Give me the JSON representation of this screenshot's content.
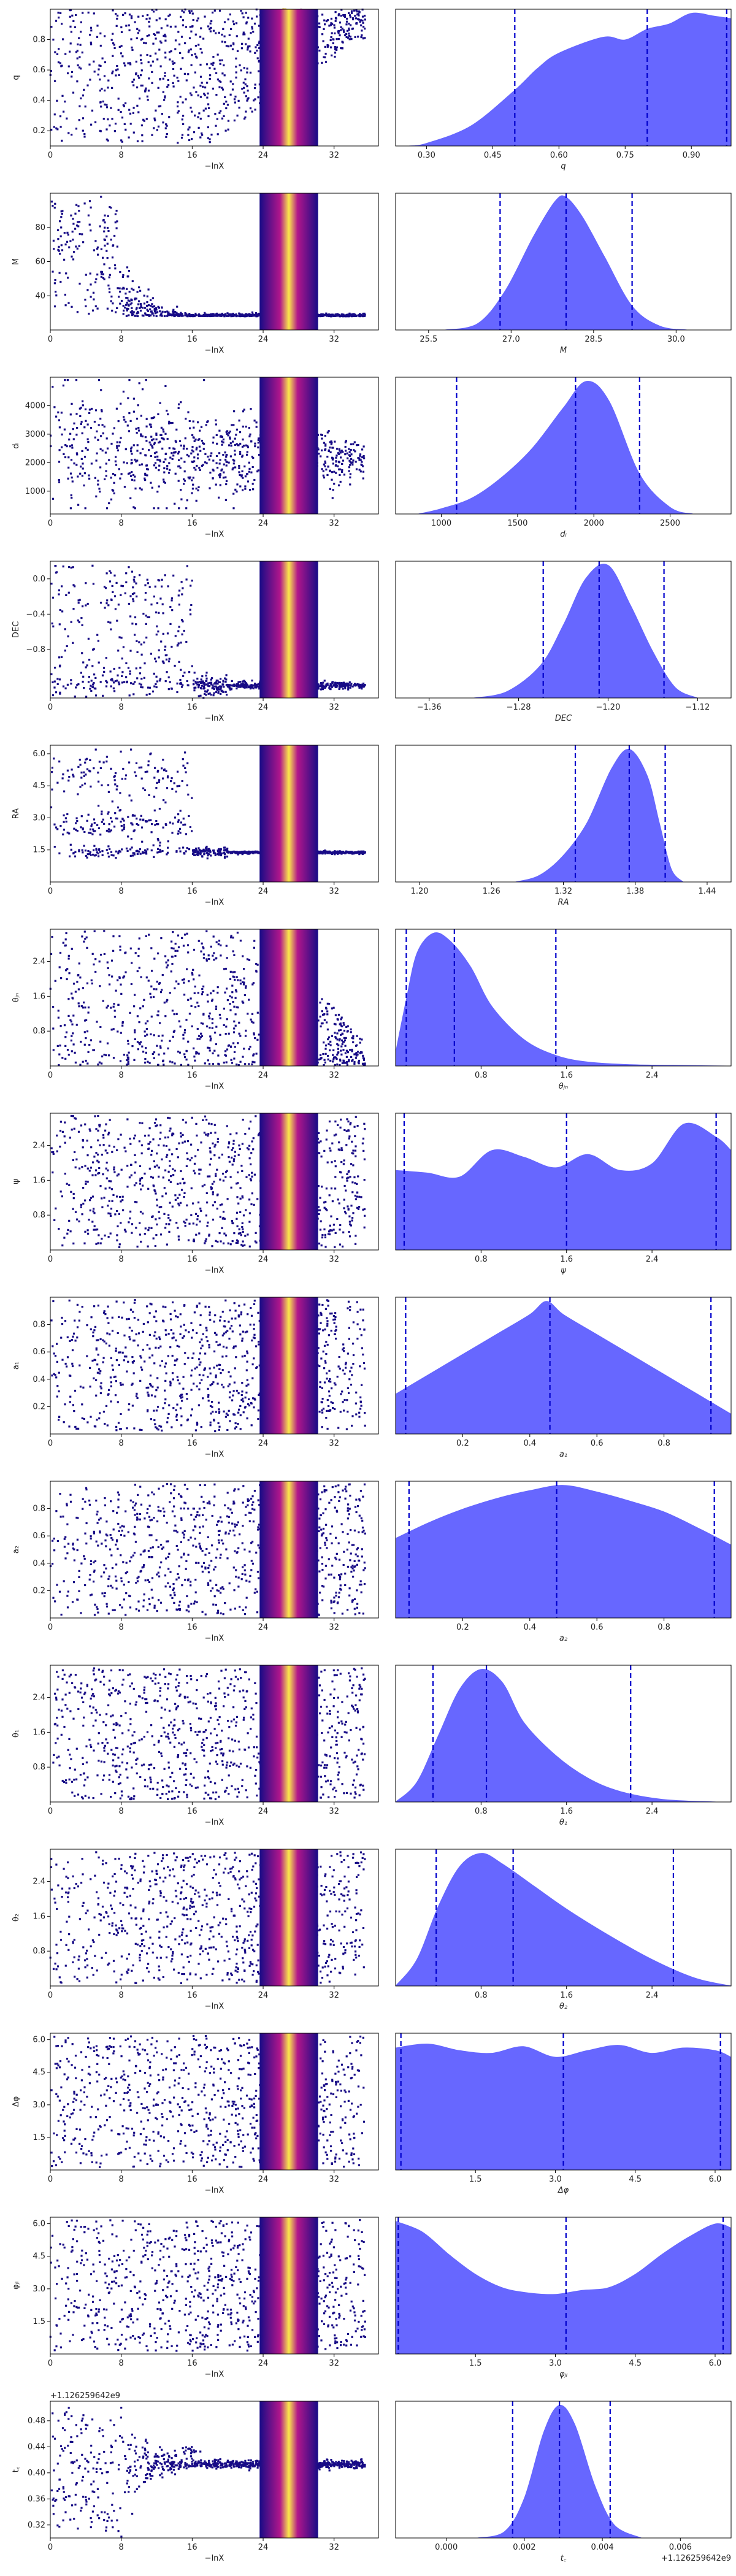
{
  "chart_data": {
    "type": "scatter",
    "colors": {
      "posterior_fill": "#6464ff",
      "quantile_line": "#0000cc",
      "scatter_low": "#170b86",
      "scatter_mid": "#b1168b",
      "scatter_high": "#fbe94a"
    },
    "quantile_style": "dashed",
    "panels": [
      {
        "param": "q",
        "trace": {
          "ylabel": "q",
          "xlabel": "−lnX",
          "xticks": [
            0,
            8,
            16,
            24,
            32
          ],
          "xlim": [
            0,
            37
          ],
          "yticks": [
            "0.2",
            "0.4",
            "0.6",
            "0.8"
          ],
          "ylim": [
            0.1,
            1.0
          ],
          "offset_label": ""
        },
        "posterior": {
          "xlabel": "q",
          "xticks": [
            "0.30",
            "0.45",
            "0.60",
            "0.75",
            "0.90"
          ],
          "xlim": [
            0.23,
            0.99
          ],
          "quantiles": [
            0.5,
            0.8,
            0.98
          ],
          "density_x": [
            0.26,
            0.3,
            0.4,
            0.5,
            0.55,
            0.6,
            0.7,
            0.75,
            0.8,
            0.85,
            0.9,
            0.95,
            0.99
          ],
          "density_y": [
            0.0,
            0.02,
            0.15,
            0.42,
            0.58,
            0.7,
            0.82,
            0.8,
            0.88,
            0.92,
            1.0,
            0.98,
            0.96
          ]
        }
      },
      {
        "param": "M",
        "trace": {
          "ylabel": "M",
          "xlabel": "−lnX",
          "xticks": [
            0,
            8,
            16,
            24,
            32
          ],
          "xlim": [
            0,
            37
          ],
          "yticks": [
            "40",
            "60",
            "80"
          ],
          "ylim": [
            20,
            100
          ],
          "offset_label": ""
        },
        "posterior": {
          "xlabel": "M",
          "xticks": [
            "25.5",
            "27.0",
            "28.5",
            "30.0"
          ],
          "xlim": [
            24.9,
            31.0
          ],
          "quantiles": [
            26.8,
            28.0,
            29.2
          ],
          "density_x": [
            25.8,
            26.4,
            26.9,
            27.4,
            27.8,
            28.0,
            28.3,
            28.7,
            29.2,
            29.7,
            30.2
          ],
          "density_y": [
            0.0,
            0.05,
            0.3,
            0.7,
            0.97,
            1.0,
            0.85,
            0.55,
            0.18,
            0.03,
            0.0
          ]
        }
      },
      {
        "param": "d_l",
        "trace": {
          "ylabel": "dₗ",
          "xlabel": "−lnX",
          "xticks": [
            0,
            8,
            16,
            24,
            32
          ],
          "xlim": [
            0,
            37
          ],
          "yticks": [
            "1000",
            "2000",
            "3000",
            "4000"
          ],
          "ylim": [
            200,
            5000
          ],
          "offset_label": ""
        },
        "posterior": {
          "xlabel": "dₗ",
          "xticks": [
            "1000",
            "1500",
            "2000",
            "2500"
          ],
          "xlim": [
            700,
            2900
          ],
          "quantiles": [
            1100,
            1880,
            2300
          ],
          "density_x": [
            850,
            1000,
            1200,
            1400,
            1600,
            1800,
            1950,
            2100,
            2300,
            2500,
            2650
          ],
          "density_y": [
            0.0,
            0.04,
            0.12,
            0.28,
            0.5,
            0.8,
            1.0,
            0.85,
            0.3,
            0.05,
            0.0
          ]
        }
      },
      {
        "param": "DEC",
        "trace": {
          "ylabel": "DEC",
          "xlabel": "−lnX",
          "xticks": [
            0,
            8,
            16,
            24,
            32
          ],
          "xlim": [
            0,
            37
          ],
          "yticks": [
            "−0.8",
            "−0.4",
            "0.0"
          ],
          "ylim": [
            -1.35,
            0.2
          ],
          "offset_label": ""
        },
        "posterior": {
          "xlabel": "DEC",
          "xticks": [
            "−1.36",
            "−1.28",
            "−1.20",
            "−1.12"
          ],
          "xlim": [
            -1.39,
            -1.09
          ],
          "quantiles": [
            -1.258,
            -1.208,
            -1.15
          ],
          "density_x": [
            -1.32,
            -1.29,
            -1.26,
            -1.24,
            -1.22,
            -1.2,
            -1.18,
            -1.16,
            -1.14,
            -1.12
          ],
          "density_y": [
            0.0,
            0.05,
            0.25,
            0.55,
            0.9,
            1.0,
            0.7,
            0.35,
            0.08,
            0.0
          ]
        }
      },
      {
        "param": "RA",
        "trace": {
          "ylabel": "RA",
          "xlabel": "−lnX",
          "xticks": [
            0,
            8,
            16,
            24,
            32
          ],
          "xlim": [
            0,
            37
          ],
          "yticks": [
            "1.5",
            "3.0",
            "4.5",
            "6.0"
          ],
          "ylim": [
            0,
            6.4
          ],
          "offset_label": ""
        },
        "posterior": {
          "xlabel": "RA",
          "xticks": [
            "1.20",
            "1.26",
            "1.32",
            "1.38",
            "1.44"
          ],
          "xlim": [
            1.18,
            1.46
          ],
          "quantiles": [
            1.33,
            1.375,
            1.405
          ],
          "density_x": [
            1.28,
            1.3,
            1.32,
            1.34,
            1.36,
            1.375,
            1.39,
            1.4,
            1.41,
            1.42
          ],
          "density_y": [
            0.0,
            0.05,
            0.2,
            0.45,
            0.85,
            1.0,
            0.8,
            0.45,
            0.1,
            0.0
          ]
        }
      },
      {
        "param": "theta_jn",
        "trace": {
          "ylabel": "θⱼₙ",
          "xlabel": "−lnX",
          "xticks": [
            0,
            8,
            16,
            24,
            32
          ],
          "xlim": [
            0,
            37
          ],
          "yticks": [
            "0.8",
            "1.6",
            "2.4"
          ],
          "ylim": [
            0,
            3.14
          ],
          "offset_label": ""
        },
        "posterior": {
          "xlabel": "θⱼₙ",
          "xticks": [
            "0.8",
            "1.6",
            "2.4"
          ],
          "xlim": [
            0.0,
            3.14
          ],
          "quantiles": [
            0.1,
            0.55,
            1.5
          ],
          "density_x": [
            0.0,
            0.1,
            0.2,
            0.35,
            0.5,
            0.7,
            0.9,
            1.2,
            1.5,
            1.8,
            2.2,
            2.6,
            3.1
          ],
          "density_y": [
            0.1,
            0.5,
            0.85,
            1.0,
            0.95,
            0.75,
            0.45,
            0.2,
            0.08,
            0.03,
            0.01,
            0.005,
            0.0
          ]
        }
      },
      {
        "param": "psi",
        "trace": {
          "ylabel": "ψ",
          "xlabel": "−lnX",
          "xticks": [
            0,
            8,
            16,
            24,
            32
          ],
          "xlim": [
            0,
            37
          ],
          "yticks": [
            "0.8",
            "1.6",
            "2.4"
          ],
          "ylim": [
            0,
            3.14
          ],
          "offset_label": ""
        },
        "posterior": {
          "xlabel": "ψ",
          "xticks": [
            "0.8",
            "1.6",
            "2.4"
          ],
          "xlim": [
            0.0,
            3.14
          ],
          "quantiles": [
            0.08,
            1.6,
            3.0
          ],
          "density_x": [
            0.0,
            0.3,
            0.6,
            0.9,
            1.2,
            1.5,
            1.8,
            2.1,
            2.4,
            2.7,
            3.0,
            3.14
          ],
          "density_y": [
            0.6,
            0.58,
            0.55,
            0.75,
            0.7,
            0.62,
            0.72,
            0.6,
            0.65,
            0.95,
            0.85,
            0.75
          ]
        }
      },
      {
        "param": "a_1",
        "trace": {
          "ylabel": "a₁",
          "xlabel": "−lnX",
          "xticks": [
            0,
            8,
            16,
            24,
            32
          ],
          "xlim": [
            0,
            37
          ],
          "yticks": [
            "0.2",
            "0.4",
            "0.6",
            "0.8"
          ],
          "ylim": [
            0,
            1.0
          ],
          "offset_label": ""
        },
        "posterior": {
          "xlabel": "a₁",
          "xticks": [
            "0.2",
            "0.4",
            "0.6",
            "0.8"
          ],
          "xlim": [
            0.0,
            1.0
          ],
          "quantiles": [
            0.03,
            0.46,
            0.94
          ],
          "density_x": [
            0.0,
            0.1,
            0.2,
            0.3,
            0.4,
            0.45,
            0.5,
            0.6,
            0.7,
            0.8,
            0.9,
            1.0
          ],
          "density_y": [
            0.3,
            0.45,
            0.6,
            0.75,
            0.9,
            1.0,
            0.9,
            0.75,
            0.6,
            0.45,
            0.3,
            0.15
          ]
        }
      },
      {
        "param": "a_2",
        "trace": {
          "ylabel": "a₂",
          "xlabel": "−lnX",
          "xticks": [
            0,
            8,
            16,
            24,
            32
          ],
          "xlim": [
            0,
            37
          ],
          "yticks": [
            "0.2",
            "0.4",
            "0.6",
            "0.8"
          ],
          "ylim": [
            0,
            1.0
          ],
          "offset_label": ""
        },
        "posterior": {
          "xlabel": "a₂",
          "xticks": [
            "0.2",
            "0.4",
            "0.6",
            "0.8"
          ],
          "xlim": [
            0.0,
            1.0
          ],
          "quantiles": [
            0.04,
            0.48,
            0.95
          ],
          "density_x": [
            0.0,
            0.1,
            0.2,
            0.3,
            0.4,
            0.5,
            0.6,
            0.7,
            0.8,
            0.9,
            1.0
          ],
          "density_y": [
            0.6,
            0.72,
            0.82,
            0.9,
            0.96,
            1.0,
            0.95,
            0.88,
            0.8,
            0.68,
            0.55
          ]
        }
      },
      {
        "param": "theta_1",
        "trace": {
          "ylabel": "θ₁",
          "xlabel": "−lnX",
          "xticks": [
            0,
            8,
            16,
            24,
            32
          ],
          "xlim": [
            0,
            37
          ],
          "yticks": [
            "0.8",
            "1.6",
            "2.4"
          ],
          "ylim": [
            0,
            3.14
          ],
          "offset_label": ""
        },
        "posterior": {
          "xlabel": "θ₁",
          "xticks": [
            "0.8",
            "1.6",
            "2.4"
          ],
          "xlim": [
            0.0,
            3.14
          ],
          "quantiles": [
            0.35,
            0.85,
            2.2
          ],
          "density_x": [
            0.0,
            0.2,
            0.4,
            0.6,
            0.8,
            1.0,
            1.2,
            1.5,
            1.8,
            2.1,
            2.5,
            3.0
          ],
          "density_y": [
            0.0,
            0.15,
            0.5,
            0.85,
            1.0,
            0.9,
            0.6,
            0.35,
            0.18,
            0.08,
            0.02,
            0.0
          ]
        }
      },
      {
        "param": "theta_2",
        "trace": {
          "ylabel": "θ₂",
          "xlabel": "−lnX",
          "xticks": [
            0,
            8,
            16,
            24,
            32
          ],
          "xlim": [
            0,
            37
          ],
          "yticks": [
            "0.8",
            "1.6",
            "2.4"
          ],
          "ylim": [
            0,
            3.14
          ],
          "offset_label": ""
        },
        "posterior": {
          "xlabel": "θ₂",
          "xticks": [
            "0.8",
            "1.6",
            "2.4"
          ],
          "xlim": [
            0.0,
            3.14
          ],
          "quantiles": [
            0.38,
            1.1,
            2.6
          ],
          "density_x": [
            0.0,
            0.2,
            0.4,
            0.6,
            0.8,
            1.0,
            1.3,
            1.6,
            2.0,
            2.4,
            2.8,
            3.14
          ],
          "density_y": [
            0.0,
            0.2,
            0.6,
            0.9,
            1.0,
            0.92,
            0.75,
            0.58,
            0.38,
            0.2,
            0.06,
            0.0
          ]
        }
      },
      {
        "param": "delta_phi",
        "trace": {
          "ylabel": "Δφ",
          "xlabel": "−lnX",
          "xticks": [
            0,
            8,
            16,
            24,
            32
          ],
          "xlim": [
            0,
            37
          ],
          "yticks": [
            "1.5",
            "3.0",
            "4.5",
            "6.0"
          ],
          "ylim": [
            0,
            6.3
          ],
          "offset_label": ""
        },
        "posterior": {
          "xlabel": "Δφ",
          "xticks": [
            "1.5",
            "3.0",
            "4.5",
            "6.0"
          ],
          "xlim": [
            0.0,
            6.3
          ],
          "quantiles": [
            0.1,
            3.15,
            6.1
          ],
          "density_x": [
            0.0,
            0.6,
            1.2,
            1.8,
            2.4,
            3.0,
            3.6,
            4.2,
            4.8,
            5.4,
            6.0,
            6.3
          ],
          "density_y": [
            0.92,
            0.95,
            0.9,
            0.88,
            0.93,
            0.85,
            0.9,
            0.94,
            0.88,
            0.92,
            0.9,
            0.85
          ]
        }
      },
      {
        "param": "phi_jl",
        "trace": {
          "ylabel": "φⱼₗ",
          "xlabel": "−lnX",
          "xticks": [
            0,
            8,
            16,
            24,
            32
          ],
          "xlim": [
            0,
            37
          ],
          "yticks": [
            "1.5",
            "3.0",
            "4.5",
            "6.0"
          ],
          "ylim": [
            0,
            6.3
          ],
          "offset_label": ""
        },
        "posterior": {
          "xlabel": "φⱼₗ",
          "xticks": [
            "1.5",
            "3.0",
            "4.5",
            "6.0"
          ],
          "xlim": [
            0.0,
            6.3
          ],
          "quantiles": [
            0.05,
            3.2,
            6.15
          ],
          "density_x": [
            0.0,
            0.5,
            1.0,
            1.5,
            2.0,
            2.5,
            3.0,
            3.5,
            4.0,
            4.5,
            5.0,
            5.5,
            6.0,
            6.3
          ],
          "density_y": [
            1.0,
            0.92,
            0.75,
            0.6,
            0.5,
            0.46,
            0.45,
            0.48,
            0.5,
            0.6,
            0.75,
            0.88,
            0.98,
            0.95
          ]
        }
      },
      {
        "param": "t_c",
        "trace": {
          "ylabel": "t꜀",
          "xlabel": "−lnX",
          "xticks": [
            0,
            8,
            16,
            24,
            32
          ],
          "xlim": [
            0,
            37
          ],
          "yticks": [
            "0.32",
            "0.36",
            "0.40",
            "0.44",
            "0.48"
          ],
          "ylim": [
            0.3,
            0.51
          ],
          "offset_label": "+1.126259642e9"
        },
        "posterior": {
          "xlabel": "t꜀",
          "xticks": [
            "0.000",
            "0.002",
            "0.004",
            "0.006"
          ],
          "xlim": [
            -0.0013,
            0.0073
          ],
          "quantiles": [
            0.0017,
            0.0029,
            0.0042
          ],
          "density_x": [
            0.0008,
            0.0015,
            0.002,
            0.0025,
            0.0029,
            0.0033,
            0.0038,
            0.0043,
            0.005
          ],
          "density_y": [
            0.0,
            0.05,
            0.3,
            0.8,
            1.0,
            0.85,
            0.4,
            0.1,
            0.0
          ],
          "offset_label": "+1.126259642e9"
        }
      }
    ]
  }
}
